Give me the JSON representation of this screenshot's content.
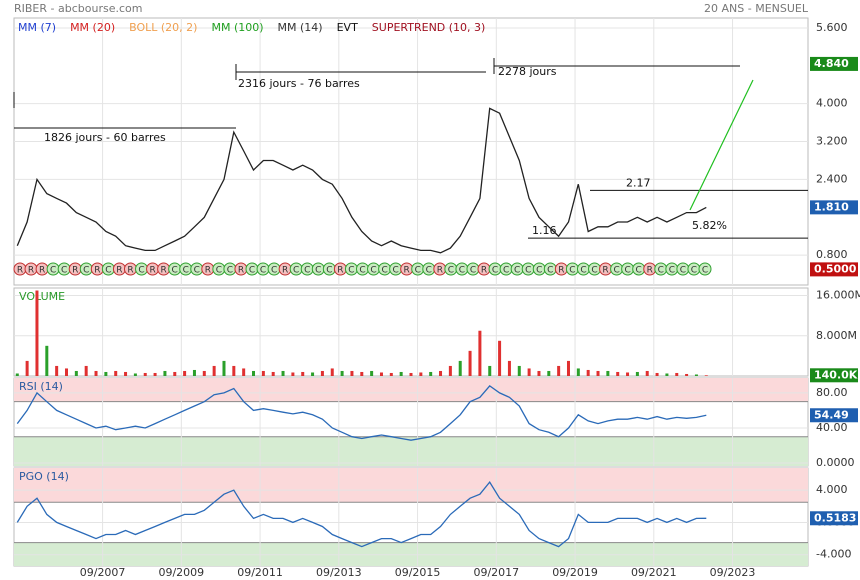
{
  "header": {
    "left": "RIBER - abcbourse.com",
    "right": "20 ANS - MENSUEL"
  },
  "chart_data": [
    {
      "type": "line",
      "color": "#222222",
      "legend": [
        {
          "name": "MM (7)",
          "color": "#1f3fd0"
        },
        {
          "name": "MM (20)",
          "color": "#d42020"
        },
        {
          "name": "BOLL (20, 2)",
          "color": "#f0a050"
        },
        {
          "name": "MM (100)",
          "color": "#20a020"
        },
        {
          "name": "MM (14)",
          "color": "#333333"
        },
        {
          "name": "EVT",
          "color": "#111111"
        },
        {
          "name": "SUPERTREND (10, 3)",
          "color": "#a01020"
        }
      ],
      "x": [
        "07/2005",
        "10/2005",
        "01/2006",
        "04/2006",
        "07/2006",
        "10/2006",
        "01/2007",
        "04/2007",
        "07/2007",
        "10/2007",
        "01/2008",
        "04/2008",
        "07/2008",
        "10/2008",
        "01/2009",
        "04/2009",
        "07/2009",
        "10/2009",
        "01/2010",
        "04/2010",
        "07/2010",
        "10/2010",
        "01/2011",
        "04/2011",
        "07/2011",
        "10/2011",
        "01/2012",
        "04/2012",
        "07/2012",
        "10/2012",
        "01/2013",
        "04/2013",
        "07/2013",
        "10/2013",
        "01/2014",
        "04/2014",
        "07/2014",
        "10/2014",
        "01/2015",
        "04/2015",
        "07/2015",
        "10/2015",
        "01/2016",
        "04/2016",
        "07/2016",
        "10/2016",
        "01/2017",
        "04/2017",
        "07/2017",
        "10/2017",
        "01/2018",
        "04/2018",
        "07/2018",
        "10/2018",
        "01/2019",
        "04/2019",
        "07/2019",
        "10/2019",
        "01/2020",
        "04/2020",
        "07/2020",
        "10/2020",
        "01/2021",
        "04/2021",
        "07/2021",
        "10/2021",
        "01/2022",
        "04/2022",
        "07/2022",
        "10/2022",
        "01/2023"
      ],
      "values": [
        1.0,
        1.5,
        2.4,
        2.1,
        2.0,
        1.9,
        1.7,
        1.6,
        1.5,
        1.3,
        1.2,
        1.0,
        0.95,
        0.9,
        0.9,
        1.0,
        1.1,
        1.2,
        1.4,
        1.6,
        2.0,
        2.4,
        3.4,
        3.0,
        2.6,
        2.8,
        2.8,
        2.7,
        2.6,
        2.7,
        2.6,
        2.4,
        2.3,
        2.0,
        1.6,
        1.3,
        1.1,
        1.0,
        1.1,
        1.0,
        0.95,
        0.9,
        0.9,
        0.85,
        0.95,
        1.2,
        1.6,
        2.0,
        3.9,
        3.8,
        3.3,
        2.8,
        2.0,
        1.6,
        1.4,
        1.2,
        1.5,
        2.3,
        1.3,
        1.4,
        1.4,
        1.5,
        1.5,
        1.6,
        1.5,
        1.6,
        1.5,
        1.6,
        1.7,
        1.7,
        1.81
      ],
      "xlim": [
        "06/2005",
        "08/2025"
      ],
      "ylim": [
        0.17,
        5.81
      ],
      "yticks": [
        {
          "value": 0.8,
          "label": "0.800"
        },
        {
          "value": 2.4,
          "label": "2.400"
        },
        {
          "value": 3.2,
          "label": "3.200"
        },
        {
          "value": 4.0,
          "label": "4.000"
        },
        {
          "value": 5.6,
          "label": "5.600"
        }
      ],
      "grid": true,
      "tags": [
        {
          "value": 4.84,
          "label": "4.840",
          "color": "#1a8a1a"
        },
        {
          "value": 1.81,
          "label": "1.810",
          "color": "#1f5fb0"
        },
        {
          "value": 0.5,
          "label": "0.5000",
          "color": "#c01010"
        }
      ],
      "levels": [
        2.17,
        1.16
      ],
      "annotations": [
        "1826 jours - 60 barres",
        "2316 jours - 76 barres",
        "2278 jours",
        "5.82%"
      ],
      "signals": [
        "R",
        "R",
        "R",
        "C",
        "C",
        "R",
        "C",
        "R",
        "C",
        "R",
        "R",
        "C",
        "R",
        "R",
        "C",
        "C",
        "C",
        "R",
        "C",
        "C",
        "R",
        "C",
        "C",
        "C",
        "R",
        "C",
        "C",
        "C",
        "C",
        "R",
        "C",
        "C",
        "C",
        "C",
        "C",
        "R",
        "C",
        "C",
        "R",
        "C",
        "C",
        "C",
        "R",
        "C",
        "C",
        "C",
        "C",
        "C",
        "C",
        "R",
        "C",
        "C",
        "C",
        "R",
        "C",
        "C",
        "C",
        "R",
        "C",
        "C",
        "C",
        "C",
        "C"
      ]
    },
    {
      "type": "bar",
      "title": "VOLUME",
      "color": "#e03030",
      "x": [
        "07/2005",
        "10/2005",
        "01/2006",
        "04/2006",
        "07/2006",
        "10/2006",
        "01/2007",
        "04/2007",
        "07/2007",
        "10/2007",
        "01/2008",
        "04/2008",
        "07/2008",
        "10/2008",
        "01/2009",
        "04/2009",
        "07/2009",
        "10/2009",
        "01/2010",
        "04/2010",
        "07/2010",
        "10/2010",
        "01/2011",
        "04/2011",
        "07/2011",
        "10/2011",
        "01/2012",
        "04/2012",
        "07/2012",
        "10/2012",
        "01/2013",
        "04/2013",
        "07/2013",
        "10/2013",
        "01/2014",
        "04/2014",
        "07/2014",
        "10/2014",
        "01/2015",
        "04/2015",
        "07/2015",
        "10/2015",
        "01/2016",
        "04/2016",
        "07/2016",
        "10/2016",
        "01/2017",
        "04/2017",
        "07/2017",
        "10/2017",
        "01/2018",
        "04/2018",
        "07/2018",
        "10/2018",
        "01/2019",
        "04/2019",
        "07/2019",
        "10/2019",
        "01/2020",
        "04/2020",
        "07/2020",
        "10/2020",
        "01/2021",
        "04/2021",
        "07/2021",
        "10/2021",
        "01/2022",
        "04/2022",
        "07/2022",
        "10/2022",
        "01/2023"
      ],
      "values": [
        500000,
        3000000,
        17000000,
        6000000,
        2000000,
        1500000,
        1000000,
        2000000,
        1000000,
        800000,
        1000000,
        800000,
        500000,
        600000,
        600000,
        1000000,
        800000,
        1000000,
        1200000,
        1000000,
        2000000,
        3000000,
        2000000,
        1500000,
        1000000,
        1000000,
        800000,
        1000000,
        700000,
        800000,
        700000,
        1000000,
        1500000,
        1000000,
        1000000,
        800000,
        1000000,
        700000,
        600000,
        800000,
        600000,
        700000,
        800000,
        1000000,
        2000000,
        3000000,
        5000000,
        9000000,
        2000000,
        7000000,
        3000000,
        2000000,
        1500000,
        1000000,
        1000000,
        2000000,
        3000000,
        1500000,
        1200000,
        1000000,
        1000000,
        800000,
        700000,
        800000,
        1000000,
        600000,
        500000,
        600000,
        400000,
        300000,
        140000
      ],
      "xlim": [
        "06/2005",
        "08/2025"
      ],
      "ylim": [
        0,
        17500000
      ],
      "yticks": [
        {
          "value": 8000000,
          "label": "8.000M"
        },
        {
          "value": 16000000,
          "label": "16.000M"
        }
      ],
      "grid": true,
      "tags": [
        {
          "value": 140000,
          "label": "140.0K",
          "color": "#1a8a1a"
        }
      ]
    },
    {
      "type": "line",
      "title": "RSI (14)",
      "color": "#2a6ab8",
      "x": [
        "07/2005",
        "10/2005",
        "01/2006",
        "04/2006",
        "07/2006",
        "10/2006",
        "01/2007",
        "04/2007",
        "07/2007",
        "10/2007",
        "01/2008",
        "04/2008",
        "07/2008",
        "10/2008",
        "01/2009",
        "04/2009",
        "07/2009",
        "10/2009",
        "01/2010",
        "04/2010",
        "07/2010",
        "10/2010",
        "01/2011",
        "04/2011",
        "07/2011",
        "10/2011",
        "01/2012",
        "04/2012",
        "07/2012",
        "10/2012",
        "01/2013",
        "04/2013",
        "07/2013",
        "10/2013",
        "01/2014",
        "04/2014",
        "07/2014",
        "10/2014",
        "01/2015",
        "04/2015",
        "07/2015",
        "10/2015",
        "01/2016",
        "04/2016",
        "07/2016",
        "10/2016",
        "01/2017",
        "04/2017",
        "07/2017",
        "10/2017",
        "01/2018",
        "04/2018",
        "07/2018",
        "10/2018",
        "01/2019",
        "04/2019",
        "07/2019",
        "10/2019",
        "01/2020",
        "04/2020",
        "07/2020",
        "10/2020",
        "01/2021",
        "04/2021",
        "07/2021",
        "10/2021",
        "01/2022",
        "04/2022",
        "07/2022",
        "10/2022",
        "01/2023"
      ],
      "values": [
        45,
        60,
        80,
        70,
        60,
        55,
        50,
        45,
        40,
        42,
        38,
        40,
        42,
        40,
        45,
        50,
        55,
        60,
        65,
        70,
        78,
        80,
        85,
        70,
        60,
        62,
        60,
        58,
        56,
        58,
        55,
        50,
        40,
        35,
        30,
        28,
        30,
        32,
        30,
        28,
        26,
        28,
        30,
        35,
        45,
        55,
        70,
        75,
        88,
        80,
        75,
        65,
        45,
        38,
        35,
        30,
        40,
        55,
        48,
        45,
        48,
        50,
        50,
        52,
        50,
        53,
        50,
        52,
        51,
        52,
        54.49
      ],
      "xlim": [
        "06/2005",
        "08/2025"
      ],
      "ylim": [
        -3.4,
        97
      ],
      "yticks": [
        {
          "value": 0,
          "label": "0.0000"
        },
        {
          "value": 40,
          "label": "40.00"
        },
        {
          "value": 80,
          "label": "80.00"
        }
      ],
      "zones": [
        70,
        30
      ],
      "grid": true,
      "tags": [
        {
          "value": 54.49,
          "label": "54.49",
          "color": "#1f5fb0"
        }
      ]
    },
    {
      "type": "line",
      "title": "PGO (14)",
      "color": "#2a6ab8",
      "x": [
        "07/2005",
        "10/2005",
        "01/2006",
        "04/2006",
        "07/2006",
        "10/2006",
        "01/2007",
        "04/2007",
        "07/2007",
        "10/2007",
        "01/2008",
        "04/2008",
        "07/2008",
        "10/2008",
        "01/2009",
        "04/2009",
        "07/2009",
        "10/2009",
        "01/2010",
        "04/2010",
        "07/2010",
        "10/2010",
        "01/2011",
        "04/2011",
        "07/2011",
        "10/2011",
        "01/2012",
        "04/2012",
        "07/2012",
        "10/2012",
        "01/2013",
        "04/2013",
        "07/2013",
        "10/2013",
        "01/2014",
        "04/2014",
        "07/2014",
        "10/2014",
        "01/2015",
        "04/2015",
        "07/2015",
        "10/2015",
        "01/2016",
        "04/2016",
        "07/2016",
        "10/2016",
        "01/2017",
        "04/2017",
        "07/2017",
        "10/2017",
        "01/2018",
        "04/2018",
        "07/2018",
        "10/2018",
        "01/2019",
        "04/2019",
        "07/2019",
        "10/2019",
        "01/2020",
        "04/2020",
        "07/2020",
        "10/2020",
        "01/2021",
        "04/2021",
        "07/2021",
        "10/2021",
        "01/2022",
        "04/2022",
        "07/2022",
        "10/2022",
        "01/2023"
      ],
      "values": [
        0,
        2,
        3,
        1,
        0,
        -0.5,
        -1,
        -1.5,
        -2,
        -1.5,
        -1.5,
        -1,
        -1.5,
        -1,
        -0.5,
        0,
        0.5,
        1,
        1,
        1.5,
        2.5,
        3.5,
        4,
        2,
        0.5,
        1,
        0.5,
        0.5,
        0,
        0.5,
        0,
        -0.5,
        -1.5,
        -2,
        -2.5,
        -3,
        -2.5,
        -2,
        -2,
        -2.5,
        -2,
        -1.5,
        -1.5,
        -0.5,
        1,
        2,
        3,
        3.5,
        5,
        3,
        2,
        1,
        -1,
        -2,
        -2.5,
        -3,
        -2,
        1,
        0,
        0,
        0,
        0.5,
        0.5,
        0.5,
        0,
        0.5,
        0,
        0.5,
        0,
        0.5,
        0.5183
      ],
      "xlim": [
        "06/2005",
        "08/2025"
      ],
      "ylim": [
        -5.4,
        6.75
      ],
      "yticks": [
        {
          "value": -4,
          "label": "-4.000"
        },
        {
          "value": 0,
          "label": "0.0000"
        },
        {
          "value": 4,
          "label": "4.000"
        }
      ],
      "zones": [
        2.5,
        -2.5
      ],
      "grid": true,
      "xticks": [
        "09/2007",
        "09/2009",
        "09/2011",
        "09/2013",
        "09/2015",
        "09/2017",
        "09/2019",
        "09/2021",
        "09/2023"
      ],
      "tags": [
        {
          "value": 0.5183,
          "label": "0.5183",
          "color": "#1f5fb0"
        }
      ]
    }
  ]
}
